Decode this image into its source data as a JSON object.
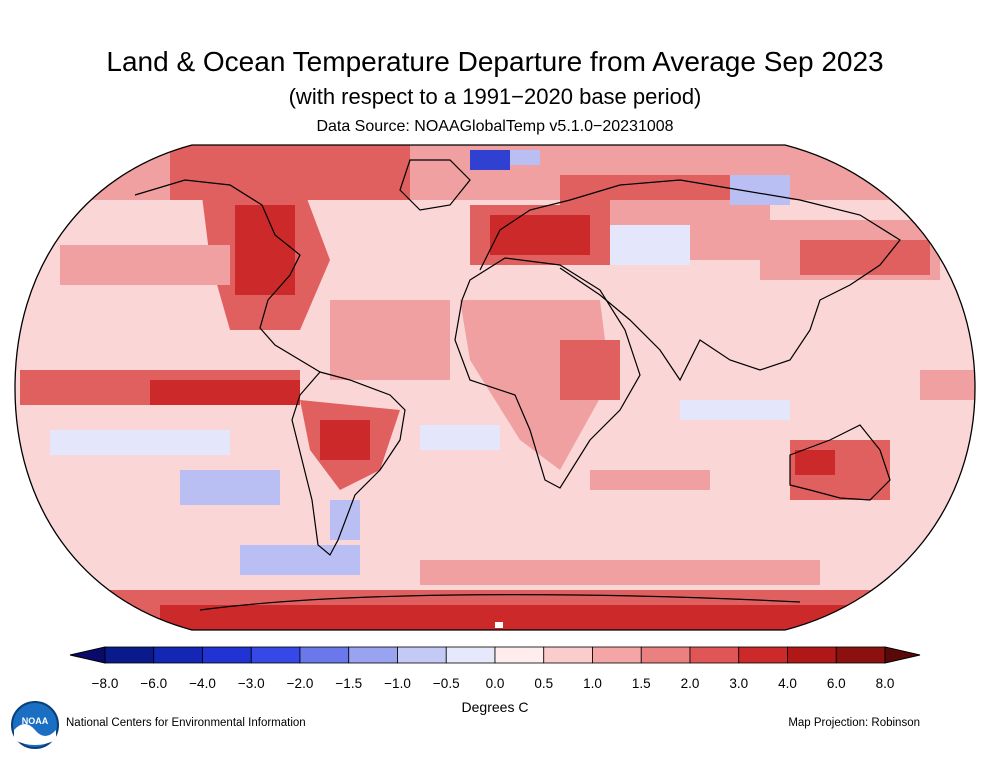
{
  "header": {
    "title": "Land & Ocean Temperature Departure from Average Sep 2023",
    "subtitle": "(with respect to a 1991−2020 base period)",
    "source": "Data Source: NOAAGlobalTemp v5.1.0−20231008"
  },
  "colorbar": {
    "labels": [
      "−8.0",
      "−6.0",
      "−4.0",
      "−3.0",
      "−2.0",
      "−1.5",
      "−1.0",
      "−0.5",
      "0.0",
      "0.5",
      "1.0",
      "1.5",
      "2.0",
      "3.0",
      "4.0",
      "6.0",
      "8.0"
    ],
    "colors": [
      "#0a1a8c",
      "#1427b4",
      "#2233d4",
      "#3648e6",
      "#6a78ec",
      "#9aa3f0",
      "#c4caf6",
      "#e6e9fb",
      "#ffecec",
      "#fbcccc",
      "#f4a6a6",
      "#eb8080",
      "#e05656",
      "#cc2a2a",
      "#b01818",
      "#8c1010"
    ],
    "units": "Degrees C"
  },
  "footer": {
    "credit": "National Centers for Environmental Information",
    "projection": "Map Projection: Robinson",
    "logo_text": "NOAA"
  },
  "map_colors": {
    "ocean_base": "#fbd6d6",
    "warm": "#f0a0a0",
    "hot": "#e06060",
    "veryhot": "#cc2a2a",
    "cool": "#e4e6fb",
    "cold": "#b9bff3",
    "coldest": "#3040d0"
  }
}
